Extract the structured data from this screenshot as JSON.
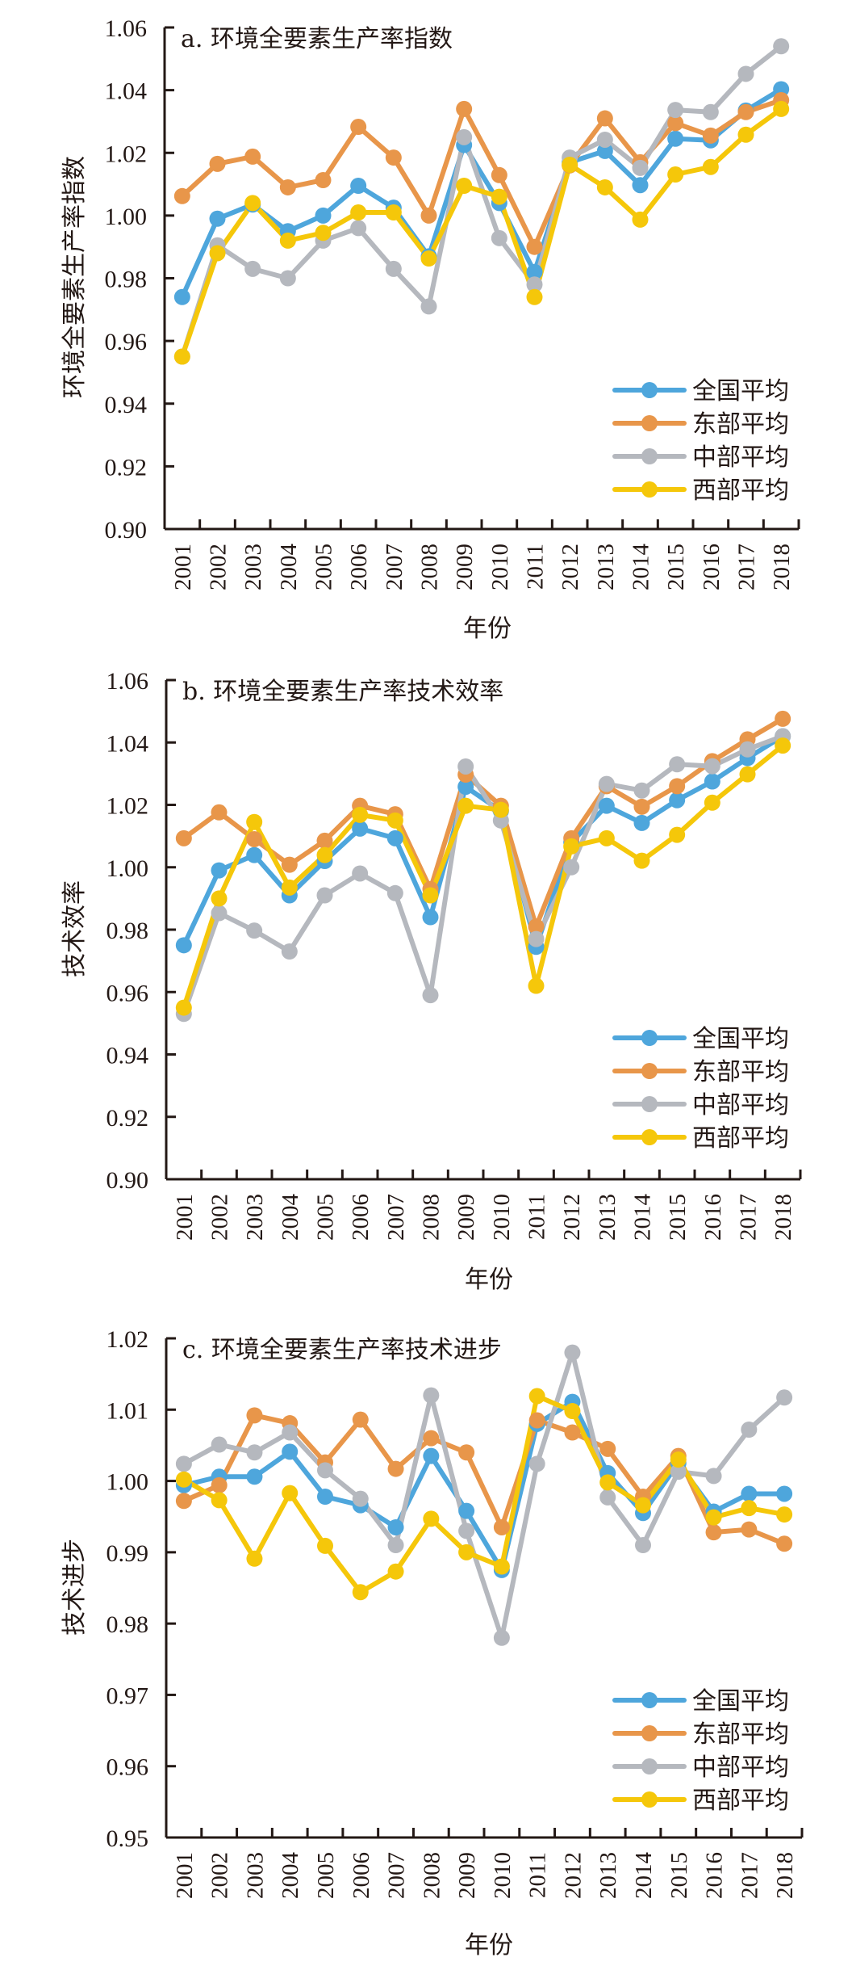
{
  "chart_data": [
    {
      "type": "line",
      "title": "a. 环境全要素生产率指数",
      "xlabel": "年份",
      "ylabel": "环境全要素生产率指数",
      "ylim": [
        0.9,
        1.06
      ],
      "yticks": [
        "0.90",
        "0.92",
        "0.94",
        "0.96",
        "0.98",
        "1.00",
        "1.02",
        "1.04",
        "1.06"
      ],
      "yticks_values": [
        0.9,
        0.92,
        0.94,
        0.96,
        0.98,
        1.0,
        1.02,
        1.04,
        1.06
      ],
      "categories": [
        "2001",
        "2002",
        "2003",
        "2004",
        "2005",
        "2006",
        "2007",
        "2008",
        "2009",
        "2010",
        "2011",
        "2012",
        "2013",
        "2014",
        "2015",
        "2016",
        "2017",
        "2018"
      ],
      "grid": false,
      "legend_position": "bottom-right",
      "series": [
        {
          "name": "全国平均",
          "color": "#4ea6dc",
          "values": [
            0.974,
            0.999,
            1.0035,
            0.995,
            1.0,
            1.0095,
            1.0025,
            0.987,
            1.0225,
            1.004,
            0.982,
            1.017,
            1.0206,
            1.0097,
            1.0245,
            1.024,
            1.0335,
            1.0403
          ]
        },
        {
          "name": "东部平均",
          "color": "#e8964a",
          "values": [
            1.0062,
            1.0165,
            1.0188,
            1.009,
            1.0113,
            1.0283,
            1.0185,
            1.0,
            1.034,
            1.0129,
            0.99,
            1.016,
            1.031,
            1.017,
            1.0295,
            1.0255,
            1.033,
            1.0368
          ]
        },
        {
          "name": "中部平均",
          "color": "#b5b8be",
          "values": [
            0.955,
            0.9905,
            0.983,
            0.98,
            0.992,
            0.996,
            0.983,
            0.971,
            1.025,
            0.9928,
            0.978,
            1.0185,
            1.0242,
            1.0152,
            1.0337,
            1.033,
            1.0452,
            1.054
          ]
        },
        {
          "name": "西部平均",
          "color": "#f5c70a",
          "values": [
            0.955,
            0.988,
            1.004,
            0.992,
            0.9945,
            1.001,
            1.001,
            0.9863,
            1.0095,
            1.006,
            0.974,
            1.0162,
            1.009,
            0.9987,
            1.0131,
            1.0155,
            1.0258,
            1.034
          ]
        }
      ]
    },
    {
      "type": "line",
      "title": "b. 环境全要素生产率技术效率",
      "xlabel": "年份",
      "ylabel": "技术效率",
      "ylim": [
        0.9,
        1.06
      ],
      "yticks": [
        "0.90",
        "0.92",
        "0.94",
        "0.96",
        "0.98",
        "1.00",
        "1.02",
        "1.04",
        "1.06"
      ],
      "yticks_values": [
        0.9,
        0.92,
        0.94,
        0.96,
        0.98,
        1.0,
        1.02,
        1.04,
        1.06
      ],
      "categories": [
        "2001",
        "2002",
        "2003",
        "2004",
        "2005",
        "2006",
        "2007",
        "2008",
        "2009",
        "2010",
        "2011",
        "2012",
        "2013",
        "2014",
        "2015",
        "2016",
        "2017",
        "2018"
      ],
      "grid": false,
      "legend_position": "bottom-right",
      "series": [
        {
          "name": "全国平均",
          "color": "#4ea6dc",
          "values": [
            0.975,
            0.999,
            1.0039,
            0.991,
            1.002,
            1.0124,
            1.0093,
            0.984,
            1.0258,
            1.018,
            0.9745,
            1.008,
            1.0197,
            1.0142,
            1.0215,
            1.0275,
            1.035,
            1.042
          ]
        },
        {
          "name": "东部平均",
          "color": "#e8964a",
          "values": [
            1.0093,
            1.0176,
            1.009,
            1.0008,
            1.0085,
            1.0197,
            1.017,
            0.993,
            1.0297,
            1.0197,
            0.981,
            1.0093,
            1.026,
            1.0194,
            1.026,
            1.034,
            1.041,
            1.0476
          ]
        },
        {
          "name": "中部平均",
          "color": "#b5b8be",
          "values": [
            0.953,
            0.9853,
            0.9797,
            0.973,
            0.991,
            0.998,
            0.9917,
            0.959,
            1.0323,
            1.015,
            0.977,
            1.0,
            1.0267,
            1.0246,
            1.033,
            1.0324,
            1.0378,
            1.042
          ]
        },
        {
          "name": "西部平均",
          "color": "#f5c70a",
          "values": [
            0.955,
            0.99,
            1.0145,
            0.9935,
            1.0039,
            1.0168,
            1.015,
            0.991,
            1.0197,
            1.0184,
            0.962,
            1.0067,
            1.0093,
            1.0021,
            1.0104,
            1.0207,
            1.0298,
            1.039
          ]
        }
      ]
    },
    {
      "type": "line",
      "title": "c. 环境全要素生产率技术进步",
      "xlabel": "年份",
      "ylabel": "技术进步",
      "ylim": [
        0.95,
        1.02
      ],
      "yticks": [
        "0.95",
        "0.96",
        "0.97",
        "0.98",
        "0.99",
        "1.00",
        "1.01",
        "1.02"
      ],
      "yticks_values": [
        0.95,
        0.96,
        0.97,
        0.98,
        0.99,
        1.0,
        1.01,
        1.02
      ],
      "categories": [
        "2001",
        "2002",
        "2003",
        "2004",
        "2005",
        "2006",
        "2007",
        "2008",
        "2009",
        "2010",
        "2011",
        "2012",
        "2013",
        "2014",
        "2015",
        "2016",
        "2017",
        "2018"
      ],
      "grid": false,
      "legend_position": "bottom-right",
      "series": [
        {
          "name": "全国平均",
          "color": "#4ea6dc",
          "values": [
            0.9994,
            1.0006,
            1.0006,
            1.0041,
            0.9978,
            0.9966,
            0.9935,
            1.0035,
            0.9958,
            0.9875,
            1.008,
            1.0111,
            1.0011,
            0.9955,
            1.0025,
            0.9957,
            0.9982,
            0.9982
          ]
        },
        {
          "name": "东部平均",
          "color": "#e8964a",
          "values": [
            0.9972,
            0.9994,
            1.0092,
            1.0081,
            1.0026,
            1.0086,
            1.0017,
            1.006,
            1.004,
            0.9935,
            1.0085,
            1.0068,
            1.0045,
            0.9978,
            1.0035,
            0.9928,
            0.9932,
            0.9912
          ]
        },
        {
          "name": "中部平均",
          "color": "#b5b8be",
          "values": [
            1.0024,
            1.0051,
            1.004,
            1.0068,
            1.0015,
            0.9975,
            0.991,
            1.012,
            0.993,
            0.978,
            1.0024,
            1.018,
            0.9977,
            0.991,
            1.0013,
            1.0007,
            1.0072,
            1.0117
          ]
        },
        {
          "name": "西部平均",
          "color": "#f5c70a",
          "values": [
            1.0002,
            0.9973,
            0.9891,
            0.9983,
            0.9909,
            0.9844,
            0.9873,
            0.9947,
            0.99,
            0.988,
            1.0119,
            1.0098,
            0.9998,
            0.9966,
            1.003,
            0.9949,
            0.9962,
            0.9953
          ]
        }
      ]
    }
  ]
}
